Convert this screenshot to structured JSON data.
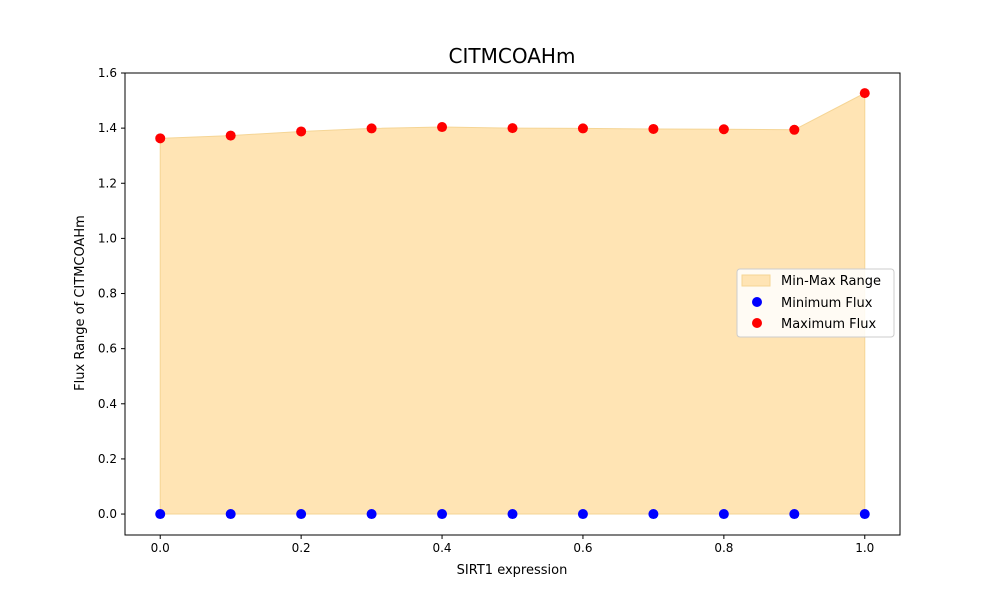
{
  "chart_data": {
    "type": "scatter",
    "title": "CITMCOAHm",
    "xlabel": "SIRT1 expression",
    "ylabel": "Flux Range of CITMCOAHm",
    "x": [
      0.0,
      0.1,
      0.2,
      0.3,
      0.4,
      0.5,
      0.6,
      0.7,
      0.8,
      0.9,
      1.0
    ],
    "xlim": [
      -0.05,
      1.05
    ],
    "ylim": [
      -0.076,
      1.6
    ],
    "xticks": [
      0.0,
      0.2,
      0.4,
      0.6,
      0.8,
      1.0
    ],
    "xtick_labels": [
      "0.0",
      "0.2",
      "0.4",
      "0.6",
      "0.8",
      "1.0"
    ],
    "yticks": [
      0.0,
      0.2,
      0.4,
      0.6,
      0.8,
      1.0,
      1.2,
      1.4,
      1.6
    ],
    "ytick_labels": [
      "0.0",
      "0.2",
      "0.4",
      "0.6",
      "0.8",
      "1.0",
      "1.2",
      "1.4",
      "1.6"
    ],
    "grid": false,
    "legend_position": "center-right",
    "fill": {
      "name": "Min-Max Range",
      "color": "#ffe4b4",
      "edge_color": "#f5d595"
    },
    "series": [
      {
        "name": "Minimum Flux",
        "color": "#0000ff",
        "values": [
          0.0,
          0.0,
          0.0,
          0.0,
          0.0,
          0.0,
          0.0,
          0.0,
          0.0,
          0.0,
          0.0
        ]
      },
      {
        "name": "Maximum Flux",
        "color": "#ff0000",
        "values": [
          1.363,
          1.373,
          1.388,
          1.399,
          1.404,
          1.4,
          1.399,
          1.397,
          1.396,
          1.394,
          1.527
        ]
      }
    ]
  }
}
